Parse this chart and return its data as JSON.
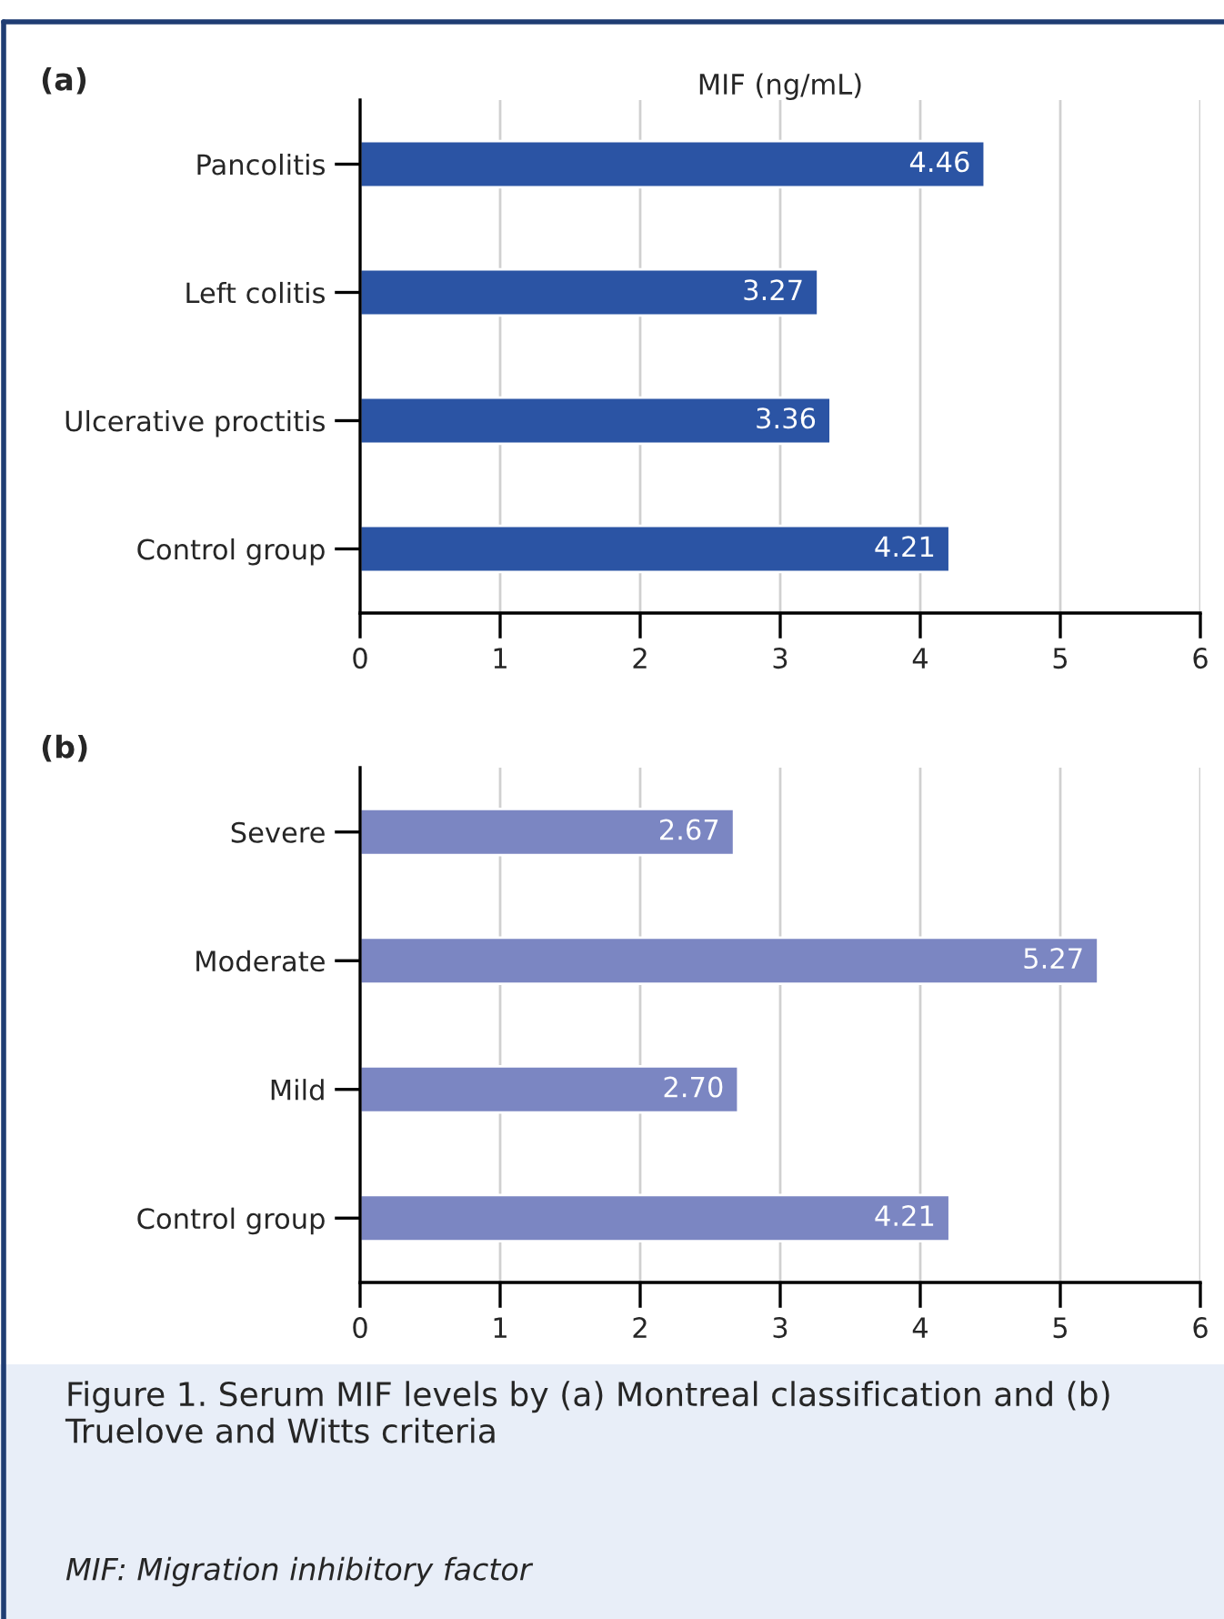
{
  "chart_data": [
    {
      "type": "bar",
      "orientation": "horizontal",
      "title": "(a)",
      "xlabel": "MIF (ng/mL)",
      "categories": [
        "Pancolitis",
        "Left colitis",
        "Ulcerative proctitis",
        "Control group"
      ],
      "values": [
        4.46,
        3.27,
        3.36,
        4.21
      ],
      "color": "#2b54a4",
      "value_labels": [
        "4.46",
        "3.27",
        "3.36",
        "4.21"
      ],
      "xlim": [
        0,
        6
      ],
      "xticks": [
        0,
        1,
        2,
        3,
        4,
        5,
        6
      ],
      "grid": "x"
    },
    {
      "type": "bar",
      "orientation": "horizontal",
      "title": "(b)",
      "categories": [
        "Severe",
        "Moderate",
        "Mild",
        "Control group"
      ],
      "values": [
        2.67,
        5.27,
        2.7,
        4.21
      ],
      "color": "#7b86c2",
      "value_labels": [
        "2.67",
        "5.27",
        "2.70",
        "4.21"
      ],
      "xlim": [
        0,
        6
      ],
      "xticks": [
        0,
        1,
        2,
        3,
        4,
        5,
        6
      ],
      "grid": "x",
      "annotations": [
        "Figure 1. Serum MIF levels by (a) Montreal classification and (b) Truelove and Witts criteria",
        "MIF: Migration inhibitory factor"
      ]
    }
  ]
}
